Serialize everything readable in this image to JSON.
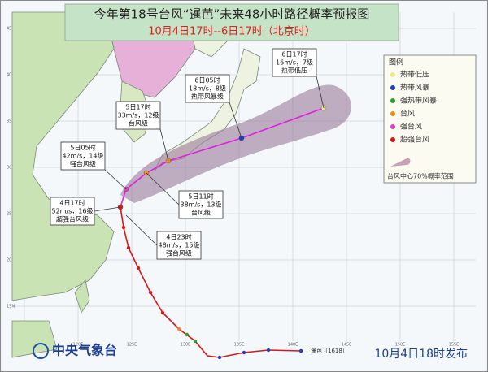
{
  "title": "今年第18号台风“暹芭”未来48小时路径概率预报图",
  "subtitle": "10月4日17时--6日17时（北京时）",
  "callouts": [
    {
      "time": "6日17时",
      "wind": "16m/s，7级",
      "level": "热带低压"
    },
    {
      "time": "6日05时",
      "wind": "18m/s，8级",
      "level": "热带风暴级"
    },
    {
      "time": "5日17时",
      "wind": "33m/s，12级",
      "level": "台风级"
    },
    {
      "time": "5日05时",
      "wind": "42m/s，14级",
      "level": "强台风级"
    },
    {
      "time": "5日11时",
      "wind": "38m/s，13级",
      "level": "台风级"
    },
    {
      "time": "4日17时",
      "wind": "52m/s，16级",
      "level": "超强台风级"
    },
    {
      "time": "4日23时",
      "wind": "48m/s，15级",
      "level": "强台风级"
    }
  ],
  "legend": {
    "title": "图例",
    "items": [
      {
        "label": "热带低压",
        "color": "#f2e68a"
      },
      {
        "label": "热带风暴",
        "color": "#1e3ec8"
      },
      {
        "label": "强热带风暴",
        "color": "#2ca02c"
      },
      {
        "label": "台风",
        "color": "#f08c1e"
      },
      {
        "label": "强台风",
        "color": "#e040c0"
      },
      {
        "label": "超强台风",
        "color": "#d81818"
      }
    ],
    "cone": "台风中心70%概率范围"
  },
  "track_label": "暹芭（1618）",
  "grid": {
    "lon_labels": [
      "115E",
      "120E",
      "125E",
      "130E",
      "135E",
      "140E",
      "145E",
      "150E",
      "155E"
    ],
    "lat_labels": [
      "45N",
      "40N",
      "35N",
      "30N",
      "25N",
      "20N",
      "15N"
    ]
  },
  "footer": {
    "agency": "中央气象台",
    "issued": "10月4日18时发布"
  }
}
